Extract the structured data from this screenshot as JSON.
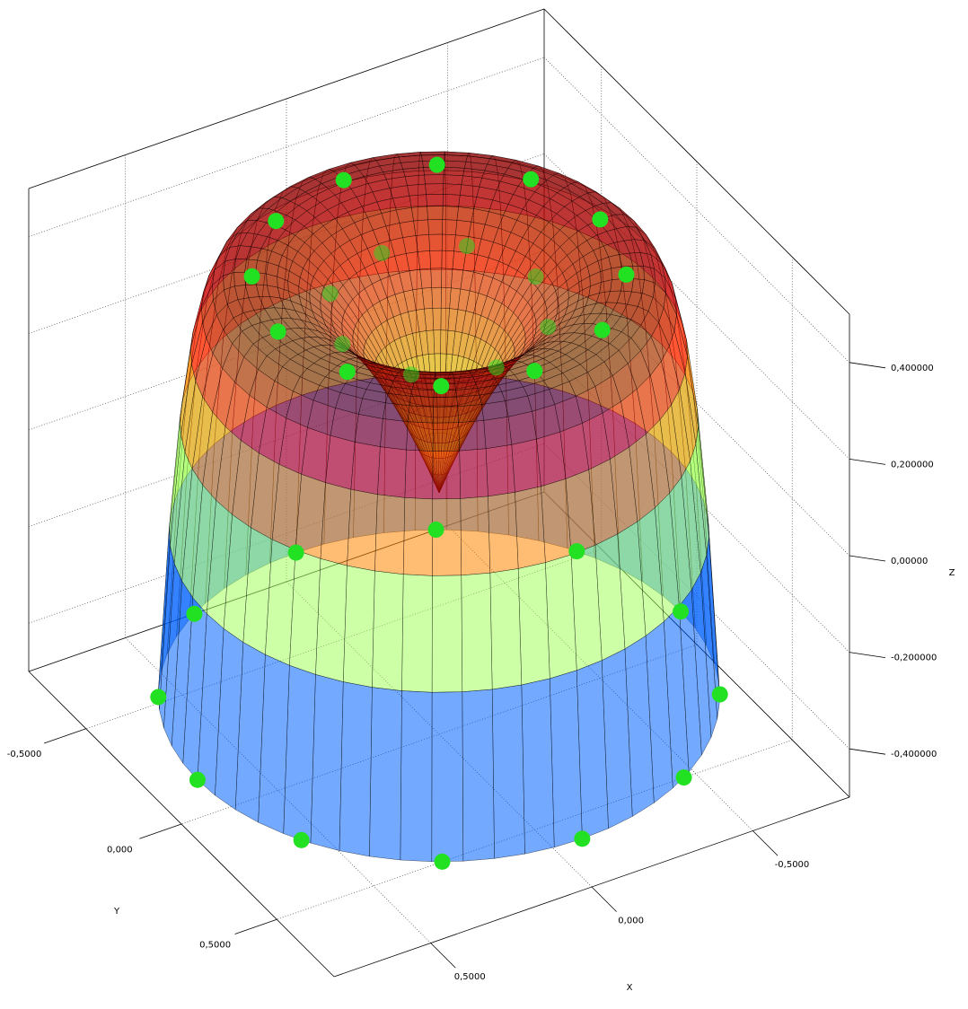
{
  "chart_data": {
    "type": "surface3d",
    "xlabel": "X",
    "ylabel": "Y",
    "zlabel": "Z",
    "xlim": [
      -0.8,
      0.8
    ],
    "ylim": [
      -0.8,
      0.8
    ],
    "zlim": [
      -0.5,
      0.5
    ],
    "xticks": [
      {
        "value": -0.5,
        "label": "-0,5000"
      },
      {
        "value": 0,
        "label": "0,000"
      },
      {
        "value": 0.5,
        "label": "0,5000"
      }
    ],
    "yticks": [
      {
        "value": -0.5,
        "label": "-0,5000"
      },
      {
        "value": 0,
        "label": "0,000"
      },
      {
        "value": 0.5,
        "label": "0,5000"
      }
    ],
    "zticks": [
      {
        "value": -0.4,
        "label": "-0,400000"
      },
      {
        "value": -0.2,
        "label": "-0,200000"
      },
      {
        "value": 0,
        "label": "0,00000"
      },
      {
        "value": 0.2,
        "label": "0,200000"
      },
      {
        "value": 0.4,
        "label": "0,400000"
      }
    ],
    "grid": true
  }
}
